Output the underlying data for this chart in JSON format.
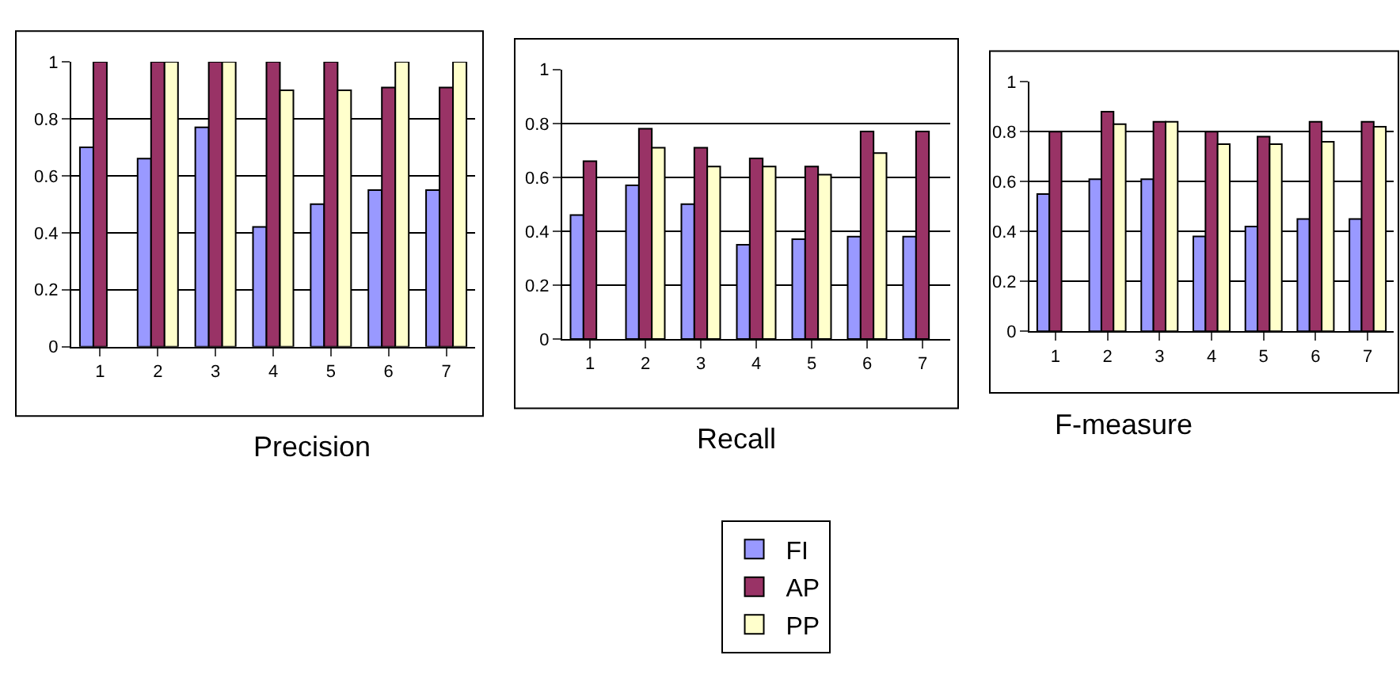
{
  "chart_data": [
    {
      "type": "bar",
      "title": "Precision",
      "categories": [
        "1",
        "2",
        "3",
        "4",
        "5",
        "6",
        "7"
      ],
      "ylim": [
        0,
        1
      ],
      "yticks": [
        0,
        0.2,
        0.4,
        0.6,
        0.8,
        1
      ],
      "grid": "y",
      "legend": "bottom",
      "series": [
        {
          "name": "FI",
          "color": "#9999ff",
          "values": [
            0.7,
            0.66,
            0.77,
            0.42,
            0.5,
            0.55,
            0.55
          ]
        },
        {
          "name": "AP",
          "color": "#993366",
          "values": [
            1,
            1,
            1,
            1,
            1,
            0.91,
            0.91
          ]
        },
        {
          "name": "PP",
          "color": "#ffffcc",
          "values": [
            null,
            1,
            1,
            0.9,
            0.9,
            1,
            1
          ]
        }
      ]
    },
    {
      "type": "bar",
      "title": "Recall",
      "categories": [
        "1",
        "2",
        "3",
        "4",
        "5",
        "6",
        "7"
      ],
      "ylim": [
        0,
        1
      ],
      "yticks": [
        0,
        0.2,
        0.4,
        0.6,
        0.8,
        1
      ],
      "grid": "y",
      "series": [
        {
          "color": "#9999ff",
          "values": [
            0.46,
            0.57,
            0.5,
            0.35,
            0.37,
            0.38,
            0.38
          ]
        },
        {
          "color": "#993366",
          "values": [
            0.66,
            0.78,
            0.71,
            0.67,
            0.64,
            0.77,
            0.77
          ]
        },
        {
          "color": "#ffffcc",
          "values": [
            null,
            0.71,
            0.64,
            0.64,
            0.61,
            0.69,
            null
          ]
        }
      ]
    },
    {
      "type": "bar",
      "title": "F-measure",
      "categories": [
        "1",
        "2",
        "3",
        "4",
        "5",
        "6",
        "7"
      ],
      "ylim": [
        0,
        1
      ],
      "yticks": [
        0,
        0.2,
        0.4,
        0.6,
        0.8,
        1
      ],
      "grid": "y",
      "series": [
        {
          "color": "#9999ff",
          "values": [
            0.55,
            0.61,
            0.61,
            0.38,
            0.42,
            0.45,
            0.45
          ]
        },
        {
          "color": "#993366",
          "values": [
            0.8,
            0.88,
            0.84,
            0.8,
            0.78,
            0.84,
            0.84
          ]
        },
        {
          "color": "#ffffcc",
          "values": [
            null,
            0.83,
            0.84,
            0.75,
            0.75,
            0.76,
            0.82
          ]
        }
      ]
    }
  ]
}
